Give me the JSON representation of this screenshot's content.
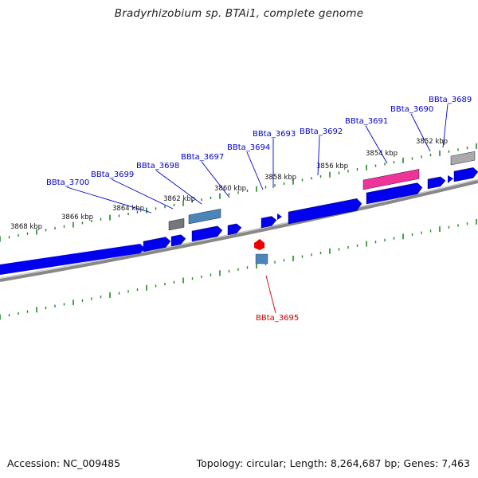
{
  "title": "Bradyrhizobium sp. BTAi1, complete genome",
  "footer": {
    "accession": "Accession: NC_009485",
    "summary": "Topology: circular; Length: 8,264,687 bp; Genes: 7,463"
  },
  "colors": {
    "forward_gene": "#0000ee",
    "pseudo_gene": "#ee3399",
    "rna_gene": "#4a86b8",
    "other_feature": "#777777",
    "highlight_label": "#cc0000",
    "label": "#0000cc",
    "tick": "#228822",
    "backbone": "#888888"
  },
  "scale_labels": [
    "3852 kbp",
    "3854 kbp",
    "3856 kbp",
    "3858 kbp",
    "3860 kbp",
    "3862 kbp",
    "3864 kbp",
    "3866 kbp",
    "3868 kbp"
  ],
  "gene_labels": [
    "BBta_3689",
    "BBta_3690",
    "BBta_3691",
    "BBta_3692",
    "BBta_3693",
    "BBta_3694",
    "BBta_3697",
    "BBta_3698",
    "BBta_3699",
    "BBta_3700",
    "BBta_3695"
  ]
}
